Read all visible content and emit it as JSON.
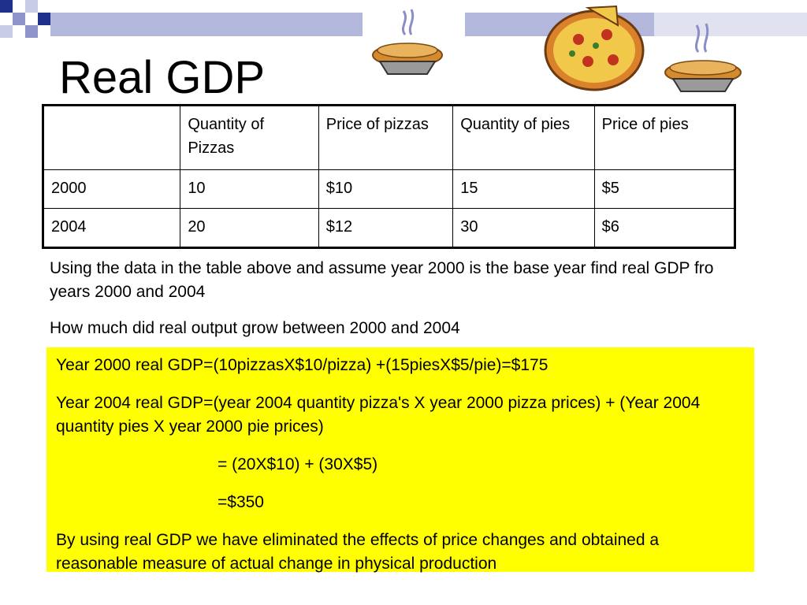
{
  "slide": {
    "title": "Real GDP"
  },
  "table": {
    "headers": [
      "",
      "Quantity of Pizzas",
      "Price of pizzas",
      "Quantity of pies",
      "Price of pies"
    ],
    "rows": [
      [
        "2000",
        "10",
        "$10",
        "15",
        "$5"
      ],
      [
        "2004",
        "20",
        "$12",
        "30",
        "$6"
      ]
    ]
  },
  "questions": [
    "Using the data in the table above and assume year 2000 is the base year find real GDP fro years 2000 and 2004",
    "How much did real output grow between 2000 and 2004"
  ],
  "answer": {
    "line1": "Year 2000 real GDP=(10pizzasX$10/pizza) +(15piesX$5/pie)=$175",
    "line2": "Year 2004 real GDP=(year 2004 quantity pizza's X year 2000 pizza prices) + (Year 2004 quantity pies X year 2000 pie prices)",
    "line3": "= (20X$10) + (30X$5)",
    "line4": "=$350",
    "line5": "By using real GDP we have eliminated the effects of price changes and obtained a reasonable measure of actual change in physical production"
  },
  "colors": {
    "accent_navy": "#1f2f8c",
    "accent_lavender": "#b3b7dc",
    "highlight_yellow": "#ffff00"
  },
  "icons": [
    "pie-icon",
    "pizza-icon",
    "pie-icon"
  ]
}
